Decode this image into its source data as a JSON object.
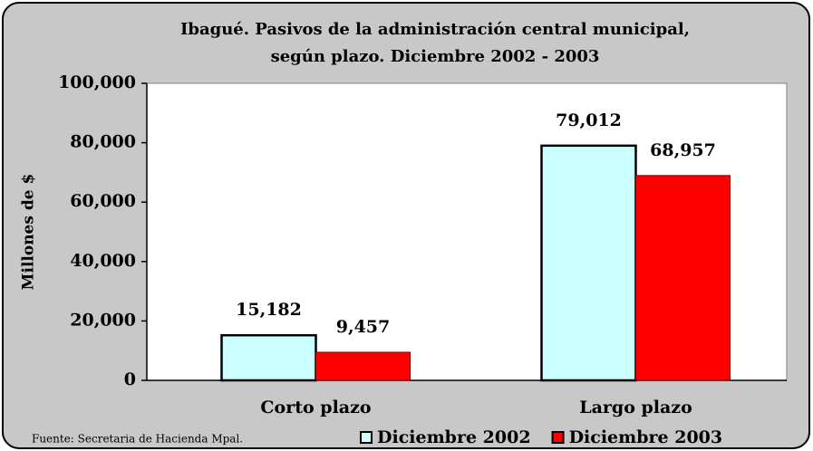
{
  "chart_data": {
    "type": "bar",
    "title": [
      "Ibagué. Pasivos de la administración central municipal,",
      "según plazo. Diciembre 2002 - 2003"
    ],
    "y_label": "Millones de $",
    "source": "Fuente: Secretaria de Hacienda Mpal.",
    "categories": [
      "Corto plazo",
      "Largo plazo"
    ],
    "series": [
      {
        "name": "Diciembre 2002",
        "color": "#ccffff",
        "values": [
          15182,
          79012
        ],
        "value_labels": [
          "15,182",
          "79,012"
        ]
      },
      {
        "name": "Diciembre 2003",
        "color": "#ff0000",
        "values": [
          9457,
          68957
        ],
        "value_labels": [
          "9,457",
          "68,957"
        ]
      }
    ],
    "ylim": [
      0,
      100000
    ],
    "yticks": [
      0,
      {
        "value": 20000,
        "label": "20,000"
      },
      {
        "value": 40000,
        "label": "40,000"
      },
      {
        "value": 60000,
        "label": "60,000"
      },
      {
        "value": 80000,
        "label": "80,000"
      },
      {
        "value": 100000,
        "label": "100,000"
      }
    ],
    "legend": "bottom"
  }
}
